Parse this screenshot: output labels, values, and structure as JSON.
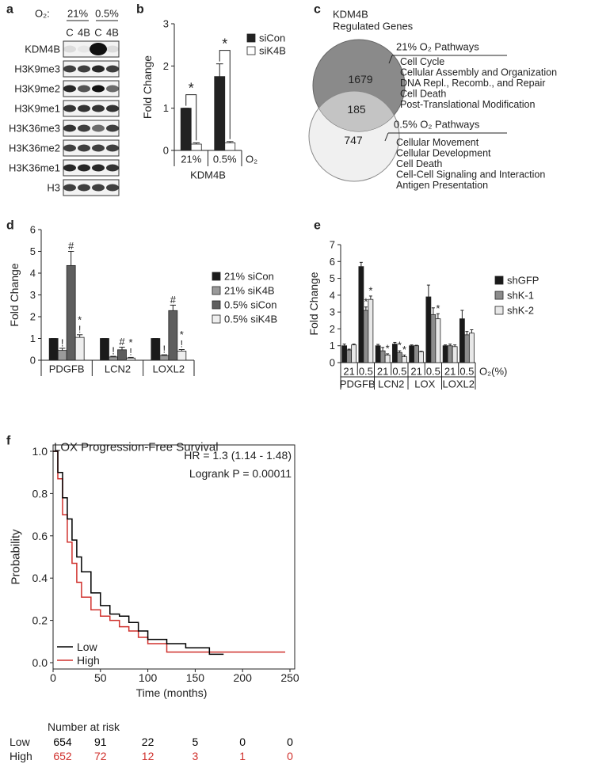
{
  "blot": {
    "panel": "a",
    "o2_label": "O₂:",
    "conditions": [
      "21%",
      "0.5%"
    ],
    "lanes": [
      "C",
      "4B",
      "C",
      "4B"
    ],
    "rows": [
      "KDM4B",
      "H3K9me3",
      "H3K9me2",
      "H3K9me1",
      "H3K36me3",
      "H3K36me2",
      "H3K36me1",
      "H3"
    ]
  },
  "venn": {
    "panel": "c",
    "title": "KDM4B",
    "subtitle": "Regulated Genes",
    "counts": {
      "only_21": "1679",
      "overlap": "185",
      "only_05": "747"
    },
    "pathways": [
      {
        "title": "21% O₂ Pathways",
        "items": [
          "Cell Cycle",
          "Cellular Assembly and Organization",
          "DNA Repl., Recomb., and Repair",
          "Cell Death",
          "Post-Translational Modification"
        ]
      },
      {
        "title": "0.5% O₂ Pathways",
        "items": [
          "Cellular Movement",
          "Cellular Development",
          "Cell Death",
          "Cell-Cell Signaling and Interaction",
          "Antigen Presentation"
        ]
      }
    ]
  },
  "chart_data": [
    {
      "type": "bar",
      "panel": "b",
      "ylabel": "Fold Change",
      "categories": [
        "21%",
        "0.5%"
      ],
      "category_group": "KDM4B",
      "category_title": "O₂",
      "series": [
        {
          "name": "siCon",
          "color": "#222222",
          "values": [
            1,
            1.75
          ],
          "errors": [
            0,
            0.3
          ]
        },
        {
          "name": "siK4B",
          "color": "#ffffff",
          "values": [
            0.15,
            0.18
          ],
          "errors": [
            0.03,
            0.03
          ]
        }
      ],
      "comparison_labels": [
        "*",
        "*"
      ],
      "ylim": [
        0,
        3
      ],
      "yticks": [
        0,
        1,
        2,
        3
      ],
      "legend": "upper right"
    },
    {
      "type": "bar",
      "panel": "d",
      "ylabel": "Fold Change",
      "categories": [
        "PDGFB",
        "LCN2",
        "LOXL2"
      ],
      "series": [
        {
          "name": "21% siCon",
          "color": "#1a1a1a",
          "values": [
            1,
            1,
            1
          ],
          "errors": [
            0,
            0,
            0
          ]
        },
        {
          "name": "21% siK4B",
          "color": "#9a9a9a",
          "values": [
            0.45,
            0.15,
            0.22
          ],
          "errors": [
            0.1,
            0.03,
            0.03
          ],
          "annotation": [
            "!",
            "!",
            "!"
          ]
        },
        {
          "name": "0.5% siCon",
          "color": "#5e5e5e",
          "values": [
            4.35,
            0.48,
            2.28
          ],
          "errors": [
            0.65,
            0.12,
            0.25
          ],
          "annotation": [
            "#",
            "#",
            "#"
          ]
        },
        {
          "name": "0.5% siK4B",
          "color": "#eeeeee",
          "values": [
            1.05,
            0.1,
            0.42
          ],
          "errors": [
            0.12,
            0.03,
            0.07
          ],
          "annotation": [
            "*",
            "*",
            "*"
          ],
          "annotation2": [
            "!",
            "!",
            "!"
          ]
        }
      ],
      "ylim": [
        0,
        6
      ],
      "yticks": [
        0,
        1,
        2,
        3,
        4,
        5,
        6
      ],
      "legend": "right"
    },
    {
      "type": "bar",
      "panel": "e",
      "ylabel": "Fold Change",
      "categories": [
        "21",
        "0.5",
        "21",
        "0.5",
        "21",
        "0.5",
        "21",
        "0.5"
      ],
      "groups": [
        "PDGFB",
        "LCN2",
        "LOX",
        "LOXL2"
      ],
      "category_title": "O₂(%)",
      "series": [
        {
          "name": "shGFP",
          "color": "#1a1a1a",
          "values": [
            1,
            5.7,
            1,
            1.1,
            1,
            3.9,
            1,
            2.6
          ],
          "errors": [
            0.1,
            0.25,
            0.08,
            0.1,
            0.05,
            0.7,
            0.05,
            0.5
          ]
        },
        {
          "name": "shK-1",
          "color": "#8c8c8c",
          "values": [
            0.75,
            3.1,
            0.7,
            0.6,
            1,
            2.85,
            1,
            1.65
          ],
          "errors": [
            0.05,
            0.2,
            0.2,
            0.1,
            0.03,
            0.4,
            0.1,
            0.2
          ],
          "annotation": [
            null,
            "*",
            null,
            "*",
            null,
            null,
            null,
            null
          ]
        },
        {
          "name": "shK-2",
          "color": "#e8e8e8",
          "values": [
            1.05,
            3.75,
            0.45,
            0.35,
            0.65,
            2.6,
            0.95,
            1.75
          ],
          "errors": [
            0.05,
            0.2,
            0.07,
            0.1,
            0.03,
            0.3,
            0.1,
            0.2
          ],
          "annotation": [
            null,
            "*",
            "*",
            "*",
            null,
            "*",
            null,
            null
          ]
        }
      ],
      "ylim": [
        0,
        7
      ],
      "yticks": [
        0,
        1,
        2,
        3,
        4,
        5,
        6,
        7
      ],
      "legend": "right"
    },
    {
      "type": "km",
      "panel": "f",
      "title": "LOX Progression-Free Survival",
      "xlabel": "Time (months)",
      "ylabel": "Probability",
      "annotations": [
        "HR = 1.3 (1.14 - 1.48)",
        "Logrank P = 0.00011"
      ],
      "series": [
        {
          "name": "Low",
          "color": "#000000",
          "x": [
            0,
            5,
            10,
            15,
            20,
            25,
            30,
            40,
            50,
            60,
            70,
            80,
            90,
            100,
            120,
            140,
            160,
            165,
            180
          ],
          "values": [
            1,
            0.9,
            0.78,
            0.68,
            0.58,
            0.5,
            0.43,
            0.33,
            0.27,
            0.23,
            0.22,
            0.19,
            0.15,
            0.11,
            0.09,
            0.07,
            0.07,
            0.04,
            0.04
          ]
        },
        {
          "name": "High",
          "color": "#d0312d",
          "x": [
            0,
            5,
            10,
            15,
            20,
            25,
            30,
            40,
            50,
            60,
            70,
            80,
            90,
            100,
            120,
            140,
            180,
            245
          ],
          "values": [
            1,
            0.87,
            0.7,
            0.57,
            0.47,
            0.38,
            0.31,
            0.25,
            0.22,
            0.2,
            0.17,
            0.15,
            0.12,
            0.09,
            0.05,
            0.05,
            0.05,
            0.05
          ]
        }
      ],
      "xlim": [
        0,
        250
      ],
      "xticks": [
        0,
        50,
        100,
        150,
        200,
        250
      ],
      "ylim": [
        0,
        1
      ],
      "yticks": [
        {
          "value": 0,
          "label": "0.0"
        },
        {
          "value": 0.2,
          "label": "0.2"
        },
        {
          "value": 0.4,
          "label": "0.4"
        },
        {
          "value": 0.6,
          "label": "0.6"
        },
        {
          "value": 0.8,
          "label": "0.8"
        },
        {
          "value": 1,
          "label": "1.0"
        }
      ],
      "legend": "lower left",
      "risk_table": {
        "title": "Number at risk",
        "rows": [
          {
            "name": "Low",
            "values": [
              654,
              91,
              22,
              5,
              0,
              0
            ]
          },
          {
            "name": "High",
            "values": [
              652,
              72,
              12,
              3,
              1,
              0
            ]
          }
        ]
      }
    }
  ]
}
